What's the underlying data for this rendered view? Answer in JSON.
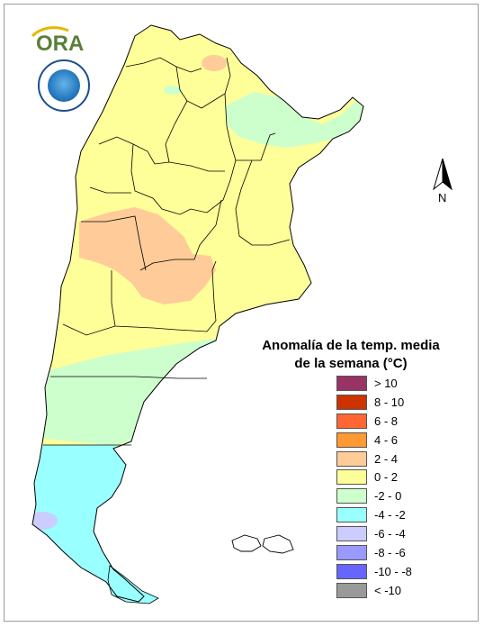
{
  "map": {
    "legend_title_line1": "Anomalía de la temp. media",
    "legend_title_line2": "de la semana (°C)",
    "compass_label": "N",
    "logo_text": "ORA",
    "legend": [
      {
        "label": "> 10",
        "color": "#993366"
      },
      {
        "label": "8 - 10",
        "color": "#cc3300"
      },
      {
        "label": "6 - 8",
        "color": "#ff6633"
      },
      {
        "label": "4 - 6",
        "color": "#ff9933"
      },
      {
        "label": "2 - 4",
        "color": "#ffcc99"
      },
      {
        "label": "0 - 2",
        "color": "#ffff99"
      },
      {
        "label": "-2 - 0",
        "color": "#ccffcc"
      },
      {
        "label": "-4 - -2",
        "color": "#99ffff"
      },
      {
        "label": "-6 - -4",
        "color": "#ccccff"
      },
      {
        "label": "-8 - -6",
        "color": "#9999ff"
      },
      {
        "label": "-10 - -8",
        "color": "#6666ff"
      },
      {
        "label": "< -10",
        "color": "#999999"
      }
    ]
  }
}
